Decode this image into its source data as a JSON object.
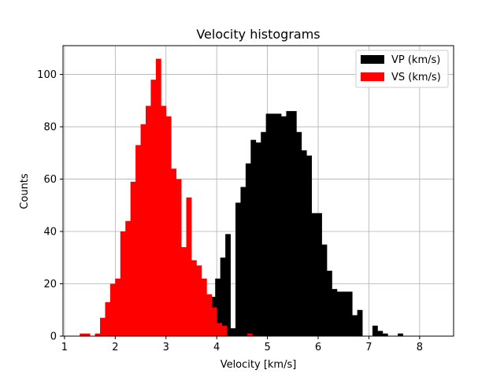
{
  "chart_data": {
    "type": "bar",
    "title": "Velocity histograms",
    "xlabel": "Velocity [km/s]",
    "ylabel": "Counts",
    "xlim": [
      0.97,
      8.67
    ],
    "ylim": [
      0,
      111
    ],
    "xticks": [
      1,
      2,
      3,
      4,
      5,
      6,
      7,
      8
    ],
    "yticks": [
      0,
      20,
      40,
      60,
      80,
      100
    ],
    "grid": true,
    "legend_position": "top-right",
    "bin_width": 0.1,
    "series": [
      {
        "name": "VP (km/s)",
        "color": "#000000",
        "bins": [
          [
            3.87,
            15
          ],
          [
            3.97,
            22
          ],
          [
            4.07,
            30
          ],
          [
            4.17,
            39
          ],
          [
            4.27,
            3
          ],
          [
            4.37,
            51
          ],
          [
            4.47,
            57
          ],
          [
            4.57,
            66
          ],
          [
            4.67,
            75
          ],
          [
            4.77,
            74
          ],
          [
            4.87,
            78
          ],
          [
            4.97,
            85
          ],
          [
            5.07,
            85
          ],
          [
            5.17,
            85
          ],
          [
            5.27,
            84
          ],
          [
            5.37,
            86
          ],
          [
            5.47,
            86
          ],
          [
            5.57,
            78
          ],
          [
            5.67,
            71
          ],
          [
            5.77,
            69
          ],
          [
            5.87,
            47
          ],
          [
            5.97,
            47
          ],
          [
            6.07,
            35
          ],
          [
            6.17,
            25
          ],
          [
            6.27,
            18
          ],
          [
            6.37,
            17
          ],
          [
            6.47,
            17
          ],
          [
            6.57,
            17
          ],
          [
            6.67,
            8
          ],
          [
            6.77,
            10
          ],
          [
            6.87,
            0
          ],
          [
            6.97,
            0
          ],
          [
            7.07,
            4
          ],
          [
            7.17,
            2
          ],
          [
            7.27,
            1
          ],
          [
            7.37,
            0
          ],
          [
            7.47,
            0
          ],
          [
            7.57,
            1
          ]
        ]
      },
      {
        "name": "VS (km/s)",
        "color": "#ff0000",
        "bins": [
          [
            1.3,
            1
          ],
          [
            1.4,
            1
          ],
          [
            1.5,
            0
          ],
          [
            1.6,
            1
          ],
          [
            1.7,
            7
          ],
          [
            1.8,
            13
          ],
          [
            1.9,
            20
          ],
          [
            2.0,
            22
          ],
          [
            2.1,
            40
          ],
          [
            2.2,
            44
          ],
          [
            2.3,
            59
          ],
          [
            2.4,
            73
          ],
          [
            2.5,
            81
          ],
          [
            2.6,
            88
          ],
          [
            2.7,
            98
          ],
          [
            2.8,
            106
          ],
          [
            2.9,
            88
          ],
          [
            3.0,
            84
          ],
          [
            3.1,
            64
          ],
          [
            3.2,
            60
          ],
          [
            3.3,
            34
          ],
          [
            3.4,
            53
          ],
          [
            3.5,
            29
          ],
          [
            3.6,
            27
          ],
          [
            3.7,
            22
          ],
          [
            3.8,
            16
          ],
          [
            3.9,
            11
          ],
          [
            4.0,
            5
          ],
          [
            4.1,
            4
          ],
          [
            4.2,
            0
          ],
          [
            4.3,
            0
          ],
          [
            4.4,
            0
          ],
          [
            4.5,
            0
          ],
          [
            4.6,
            1
          ]
        ]
      }
    ]
  }
}
